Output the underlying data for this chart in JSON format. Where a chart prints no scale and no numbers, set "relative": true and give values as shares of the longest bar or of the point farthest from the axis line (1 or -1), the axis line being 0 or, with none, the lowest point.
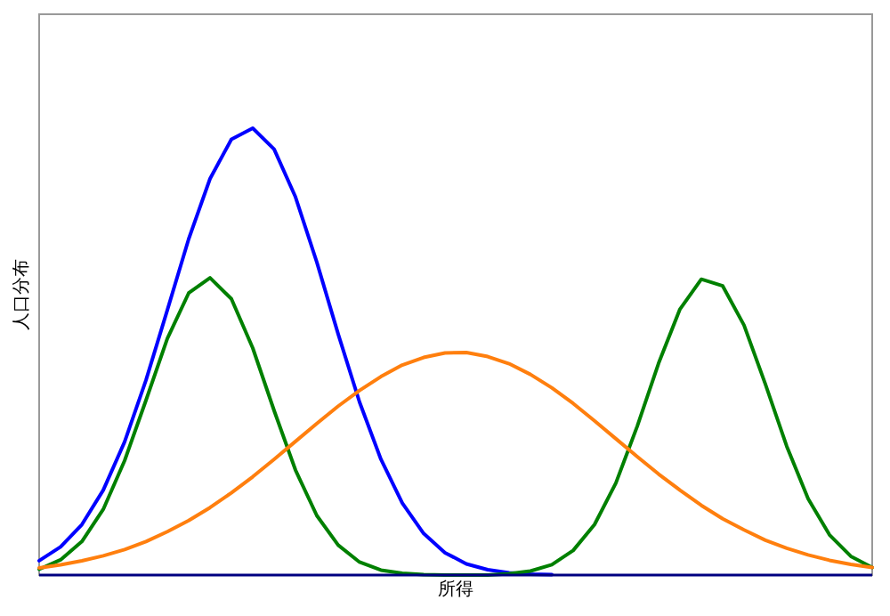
{
  "chart_data": {
    "type": "line",
    "relative": true,
    "xlabel": "所得",
    "ylabel": "人口分布",
    "categories": [
      null,
      null,
      null,
      null,
      null,
      null,
      null,
      null,
      null,
      null,
      null,
      null,
      null,
      null,
      null,
      null,
      null,
      null,
      null,
      null,
      null,
      null,
      null,
      null,
      null,
      null,
      null,
      null,
      null,
      null,
      null,
      null,
      null,
      null,
      null,
      null,
      null,
      null,
      null,
      null
    ],
    "series": [
      {
        "color": "#0000ff",
        "values": [
          0.032,
          0.063,
          0.113,
          0.19,
          0.298,
          0.436,
          0.593,
          0.752,
          0.887,
          0.975,
          1,
          0.953,
          0.846,
          0.7,
          0.539,
          0.387,
          0.259,
          0.161,
          0.093,
          0.05,
          0.025,
          0.012,
          0.005,
          0.002,
          0.001,
          null,
          null,
          null,
          null,
          null,
          null,
          null,
          null,
          null,
          null,
          null,
          null,
          null,
          null,
          null
        ]
      },
      {
        "color": "#008000",
        "values": [
          0.013,
          0.034,
          0.075,
          0.147,
          0.256,
          0.391,
          0.529,
          0.631,
          0.665,
          0.618,
          0.508,
          0.368,
          0.235,
          0.133,
          0.067,
          0.029,
          0.011,
          0.004,
          0.001,
          0,
          0,
          0,
          0.003,
          0.009,
          0.023,
          0.055,
          0.113,
          0.206,
          0.333,
          0.474,
          0.595,
          0.662,
          0.647,
          0.559,
          0.427,
          0.288,
          0.171,
          0.09,
          0.042,
          0.017
        ]
      },
      {
        "color": "#ff7f0e",
        "values": [
          0.016,
          0.023,
          0.032,
          0.043,
          0.057,
          0.075,
          0.097,
          0.122,
          0.151,
          0.184,
          0.22,
          0.259,
          0.299,
          0.339,
          0.378,
          0.413,
          0.444,
          0.47,
          0.487,
          0.497,
          0.498,
          0.489,
          0.473,
          0.449,
          0.419,
          0.384,
          0.345,
          0.305,
          0.265,
          0.226,
          0.19,
          0.156,
          0.126,
          0.101,
          0.078,
          0.06,
          0.045,
          0.033,
          0.024,
          0.017
        ]
      }
    ]
  }
}
